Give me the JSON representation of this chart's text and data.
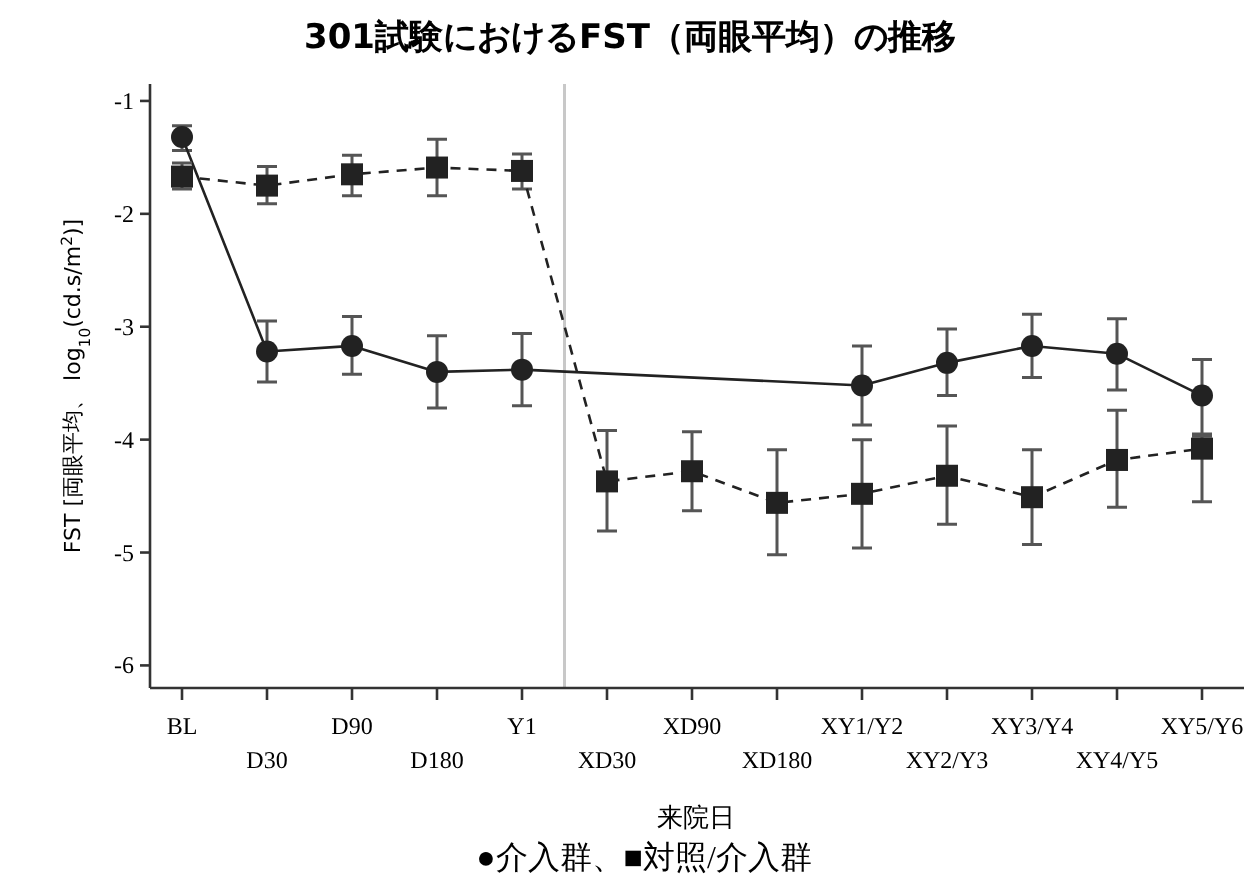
{
  "chart_data": {
    "type": "line",
    "title": "301試験におけるFST（両眼平均）の推移",
    "xlabel": "来院日",
    "ylabel": "FST [両眼平均、 log$_{10}$(cd.s/m$^{2}$)]",
    "annotations": [
      "●介入群、■対照/介入群"
    ],
    "categories": [
      "BL",
      "D30",
      "D90",
      "D180",
      "Y1",
      "XD30",
      "XD90",
      "XD180",
      "XY1/Y2",
      "XY2/Y3",
      "XY3/Y4",
      "XY4/Y5",
      "XY5/Y6"
    ],
    "series": [
      {
        "color": "#222222",
        "marker": "circle",
        "line_style": "solid",
        "values": [
          -1.32,
          -3.22,
          -3.17,
          -3.4,
          -3.38,
          null,
          null,
          null,
          -3.52,
          -3.32,
          -3.17,
          -3.24,
          -3.61
        ],
        "errors": [
          [
            -1.44,
            -1.22
          ],
          [
            -3.49,
            -2.95
          ],
          [
            -3.42,
            -2.91
          ],
          [
            -3.72,
            -3.08
          ],
          [
            -3.7,
            -3.06
          ],
          null,
          null,
          null,
          [
            -3.87,
            -3.17
          ],
          [
            -3.61,
            -3.02
          ],
          [
            -3.45,
            -2.89
          ],
          [
            -3.56,
            -2.93
          ],
          [
            -3.95,
            -3.29
          ]
        ]
      },
      {
        "color": "#222222",
        "marker": "square",
        "line_style": "dashed",
        "values": [
          -1.67,
          -1.75,
          -1.65,
          -1.59,
          -1.62,
          -4.37,
          -4.28,
          -4.56,
          -4.48,
          -4.32,
          -4.51,
          -4.18,
          -4.08
        ],
        "errors": [
          [
            -1.78,
            -1.55
          ],
          [
            -1.91,
            -1.58
          ],
          [
            -1.84,
            -1.48
          ],
          [
            -1.84,
            -1.34
          ],
          [
            -1.78,
            -1.47
          ],
          [
            -4.81,
            -3.92
          ],
          [
            -4.63,
            -3.93
          ],
          [
            -5.02,
            -4.09
          ],
          [
            -4.96,
            -4.0
          ],
          [
            -4.75,
            -3.88
          ],
          [
            -4.93,
            -4.09
          ],
          [
            -4.6,
            -3.74
          ],
          [
            -4.55,
            -3.97
          ]
        ]
      }
    ],
    "ylim": [
      -6.2,
      -0.85
    ],
    "yticks": [
      -1,
      -2,
      -3,
      -4,
      -5,
      -6
    ],
    "grid": false
  }
}
